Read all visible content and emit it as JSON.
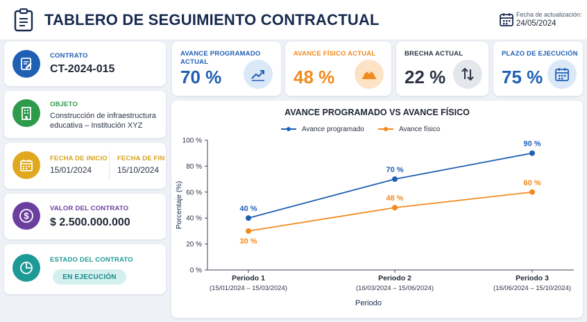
{
  "header": {
    "title": "TABLERO DE SEGUIMIENTO CONTRACTUAL",
    "update_label": "Fecha de actualización:",
    "update_date": "24/05/2024"
  },
  "contract": {
    "label": "CONTRATO",
    "value": "CT-2024-015"
  },
  "object": {
    "label": "OBJETO",
    "line1": "Construcción de infraestructura",
    "line2": "educativa – Institución XYZ"
  },
  "dates": {
    "start_label": "FECHA DE INICIO",
    "start_value": "15/01/2024",
    "end_label": "FECHA DE FIN",
    "end_value": "15/10/2024"
  },
  "value": {
    "label": "VALOR DEL CONTRATO",
    "amount": "$ 2.500.000.000"
  },
  "status": {
    "label": "ESTADO DEL CONTRATO",
    "badge": "EN EJECUCIÓN"
  },
  "kpis": [
    {
      "label_line1": "AVANCE PROGRAMADO",
      "label_line2": "ACTUAL",
      "value": "70 %",
      "color": "#1f5fb4",
      "icon": "trend-up-icon"
    },
    {
      "label_line1": "AVANCE FÍSICO ACTUAL",
      "label_line2": "",
      "value": "48 %",
      "color": "#f28a1e",
      "icon": "hard-hat-icon"
    },
    {
      "label_line1": "BRECHA ACTUAL",
      "label_line2": "",
      "value": "22 %",
      "color": "#2b3344",
      "icon": "swap-vertical-icon"
    },
    {
      "label_line1": "PLAZO DE EJECUCIÓN",
      "label_line2": "",
      "value": "75 %",
      "color": "#1f5fb4",
      "icon": "calendar-icon"
    }
  ],
  "colors": {
    "blue": "#1f5fb4",
    "orange": "#f28a1e",
    "green": "#2e9a4c",
    "gold": "#e0a81e",
    "purple": "#6b3fa0",
    "teal": "#1e9a96"
  },
  "chart_data": {
    "type": "line",
    "title": "AVANCE PROGRAMADO VS AVANCE FÍSICO",
    "xlabel": "Periodo",
    "ylabel": "Porcentaje (%)",
    "categories": [
      "Periodo 1",
      "Periodo 2",
      "Periodo 3"
    ],
    "category_sublabels": [
      "(15/01/2024 – 15/03/2024)",
      "(16/03/2024 – 15/06/2024)",
      "(16/06/2024 – 15/10/2024)"
    ],
    "ylim": [
      0,
      100
    ],
    "yticks": [
      0,
      20,
      40,
      60,
      80,
      100
    ],
    "ytick_labels": [
      "0 %",
      "20 %",
      "40 %",
      "60 %",
      "80 %",
      "100 %"
    ],
    "legend_position": "top-center",
    "grid": false,
    "series": [
      {
        "name": "Avance programado",
        "values": [
          40,
          70,
          90
        ],
        "labels": [
          "40 %",
          "70 %",
          "90 %"
        ],
        "color": "#1f5fb4"
      },
      {
        "name": "Avance físico",
        "values": [
          30,
          48,
          60
        ],
        "labels": [
          "30 %",
          "48 %",
          "60 %"
        ],
        "color": "#f28a1e"
      }
    ]
  }
}
